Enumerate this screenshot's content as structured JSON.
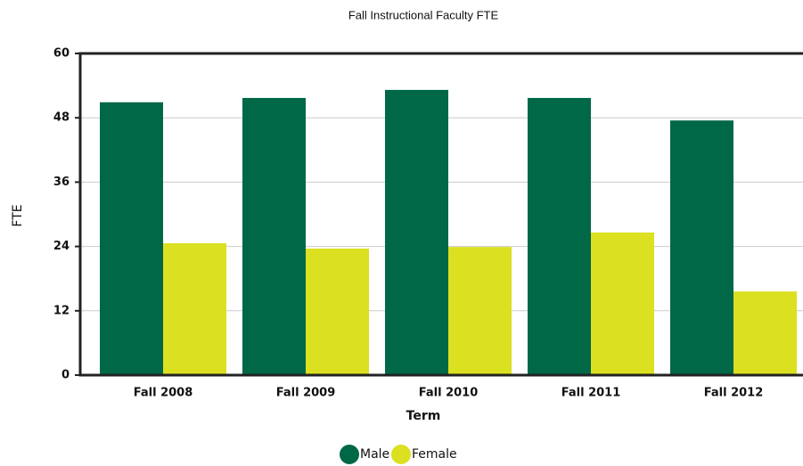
{
  "chart_data": {
    "type": "bar",
    "title": "Fall Instructional Faculty FTE",
    "x_label": "Term",
    "y_label": "FTE",
    "categories": [
      "Fall 2008",
      "Fall 2009",
      "Fall 2010",
      "Fall 2011",
      "Fall 2012"
    ],
    "series": [
      {
        "name": "Male",
        "color": "#006747",
        "values": [
          50.9,
          51.7,
          53.2,
          51.7,
          47.5
        ]
      },
      {
        "name": "Female",
        "color": "#dbe020",
        "values": [
          24.6,
          23.6,
          23.9,
          26.6,
          15.6
        ]
      }
    ],
    "ylim": [
      0,
      60
    ],
    "yticks": [
      0,
      12,
      24,
      36,
      48,
      60
    ],
    "grid": true,
    "legend": "bottom"
  }
}
